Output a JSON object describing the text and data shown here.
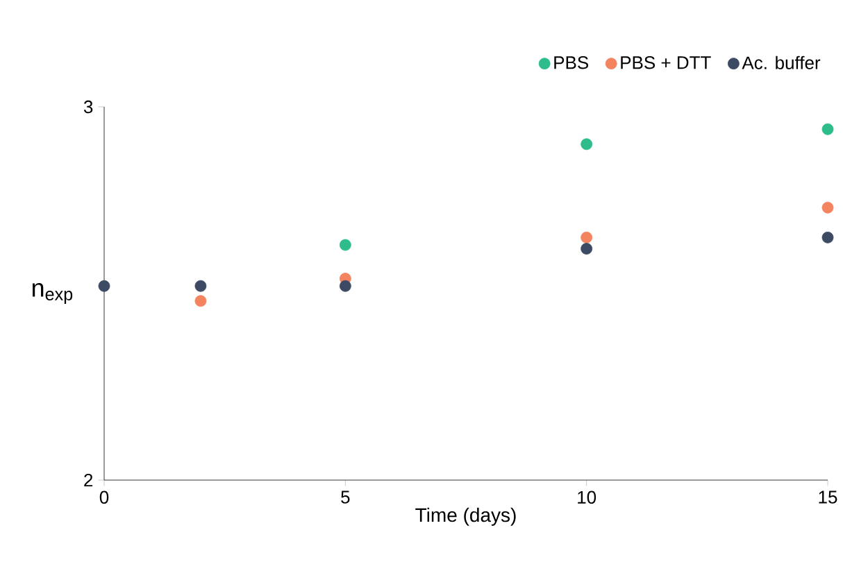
{
  "chart_data": {
    "type": "scatter",
    "xlabel": "Time (days)",
    "ylabel": "n$_{exp}$",
    "x": [
      0,
      2,
      5,
      10,
      15
    ],
    "series": [
      {
        "name": "PBS",
        "color": "#2ebd8a",
        "values": [
          null,
          null,
          2.63,
          2.9,
          2.94
        ]
      },
      {
        "name": "PBS + DTT",
        "color": "#f4845f",
        "values": [
          null,
          2.48,
          2.54,
          2.65,
          2.73
        ]
      },
      {
        "name": "Ac. buffer",
        "color": "#3d4a63",
        "values": [
          2.52,
          2.52,
          2.52,
          2.62,
          2.65
        ]
      }
    ],
    "xlim": [
      0,
      15
    ],
    "ylim": [
      2,
      3
    ],
    "xticks": [
      0,
      5,
      10,
      15
    ],
    "yticks": [
      2,
      3
    ],
    "grid": false,
    "legend": "top right",
    "marker": "circle"
  }
}
